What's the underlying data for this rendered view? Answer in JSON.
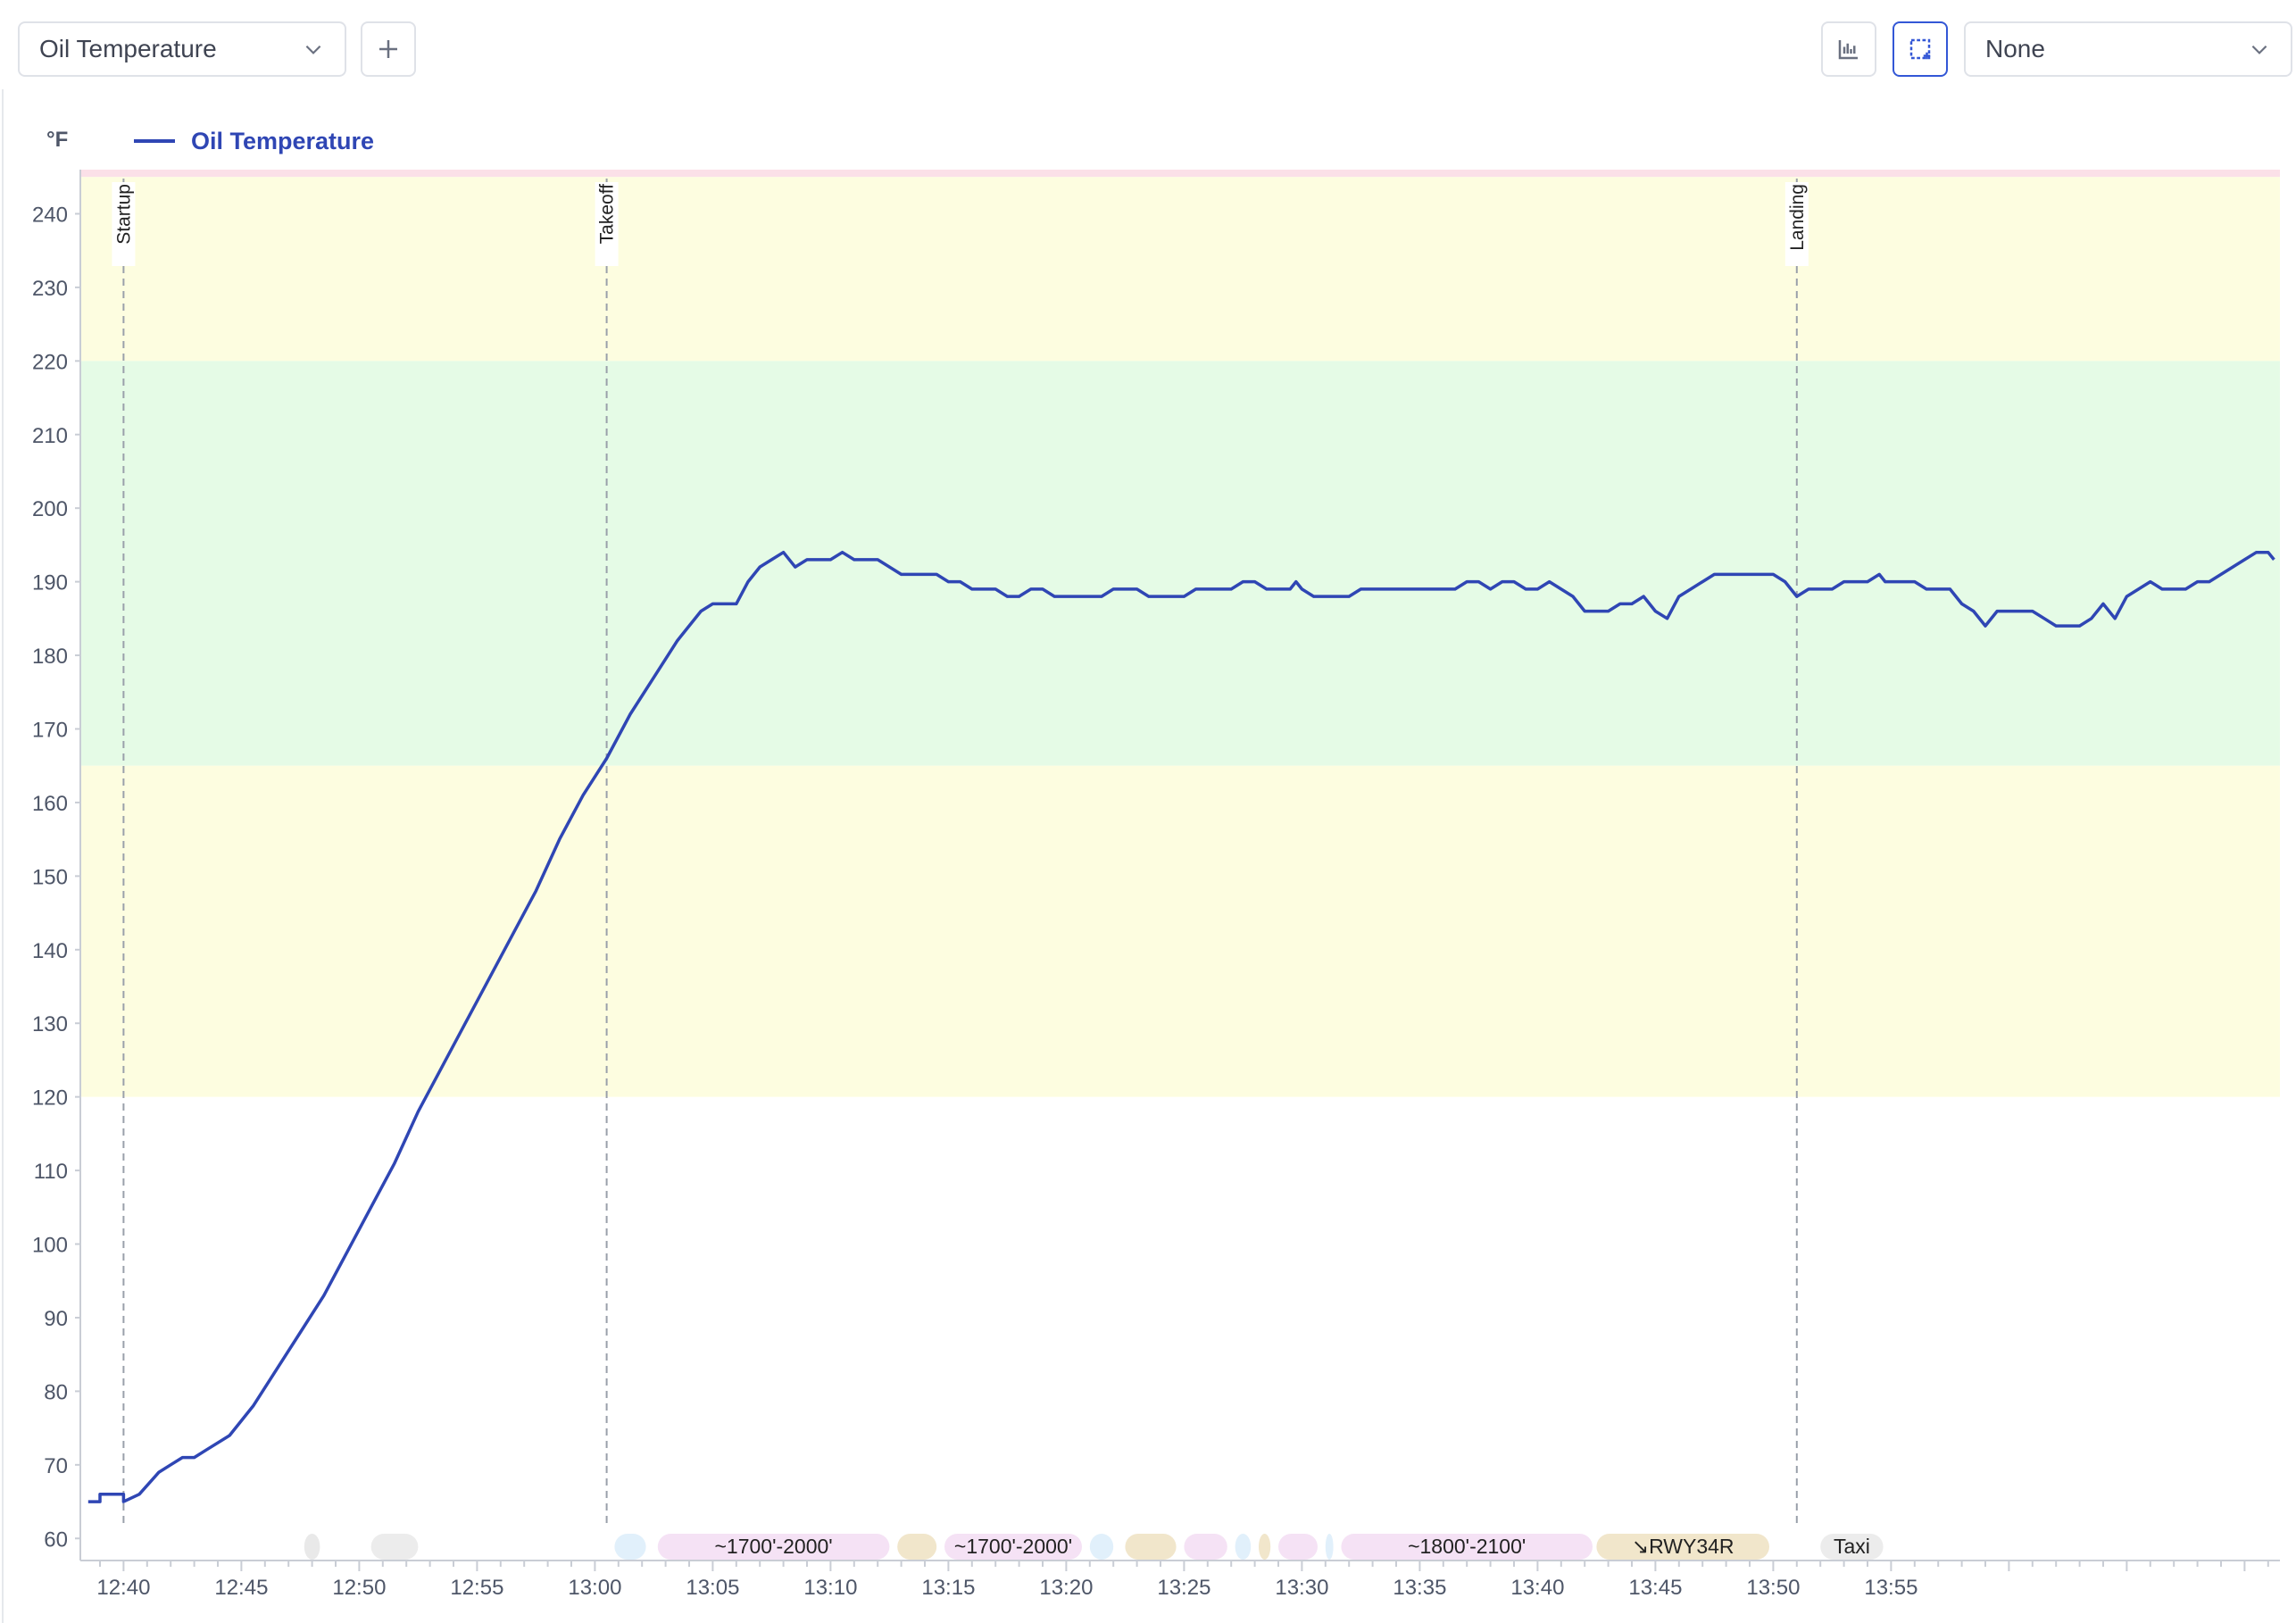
{
  "toolbar": {
    "metric_select_value": "Oil Temperature",
    "add_icon": "plus-icon",
    "bar_chart_icon": "bar-chart-icon",
    "selection_icon": "selection-box-icon",
    "compare_select_value": "None",
    "accent_color": "#3357d6"
  },
  "chart_data": {
    "type": "line",
    "unit": "°F",
    "legend": [
      "Oil Temperature"
    ],
    "series": [
      {
        "name": "Oil Temperature",
        "color": "#2f46b4",
        "points": [
          [
            "12:38:30",
            65
          ],
          [
            "12:39:00",
            65
          ],
          [
            "12:39:00",
            66
          ],
          [
            "12:40:00",
            66
          ],
          [
            "12:40:00",
            65
          ],
          [
            "12:40:40",
            66
          ],
          [
            "12:41:30",
            69
          ],
          [
            "12:42:00",
            70
          ],
          [
            "12:42:30",
            71
          ],
          [
            "12:43:00",
            71
          ],
          [
            "12:43:30",
            72
          ],
          [
            "12:44:30",
            74
          ],
          [
            "12:45:30",
            78
          ],
          [
            "12:46:30",
            83
          ],
          [
            "12:47:30",
            88
          ],
          [
            "12:48:30",
            93
          ],
          [
            "12:49:30",
            99
          ],
          [
            "12:50:30",
            105
          ],
          [
            "12:51:30",
            111
          ],
          [
            "12:52:30",
            118
          ],
          [
            "12:53:30",
            124
          ],
          [
            "12:54:30",
            130
          ],
          [
            "12:55:30",
            136
          ],
          [
            "12:56:30",
            142
          ],
          [
            "12:57:30",
            148
          ],
          [
            "12:58:30",
            155
          ],
          [
            "12:59:30",
            161
          ],
          [
            "13:00:30",
            166
          ],
          [
            "13:01:30",
            172
          ],
          [
            "13:02:30",
            177
          ],
          [
            "13:03:30",
            182
          ],
          [
            "13:04:30",
            186
          ],
          [
            "13:05:00",
            187
          ],
          [
            "13:06:00",
            187
          ],
          [
            "13:06:30",
            190
          ],
          [
            "13:07:00",
            192
          ],
          [
            "13:07:30",
            193
          ],
          [
            "13:08:00",
            194
          ],
          [
            "13:08:30",
            192
          ],
          [
            "13:09:00",
            193
          ],
          [
            "13:10:00",
            193
          ],
          [
            "13:10:30",
            194
          ],
          [
            "13:11:00",
            193
          ],
          [
            "13:12:00",
            193
          ],
          [
            "13:12:30",
            192
          ],
          [
            "13:13:00",
            191
          ],
          [
            "13:14:30",
            191
          ],
          [
            "13:15:00",
            190
          ],
          [
            "13:15:30",
            190
          ],
          [
            "13:16:00",
            189
          ],
          [
            "13:17:00",
            189
          ],
          [
            "13:17:30",
            188
          ],
          [
            "13:18:00",
            188
          ],
          [
            "13:18:30",
            189
          ],
          [
            "13:19:00",
            189
          ],
          [
            "13:19:30",
            188
          ],
          [
            "13:21:30",
            188
          ],
          [
            "13:22:00",
            189
          ],
          [
            "13:23:00",
            189
          ],
          [
            "13:23:30",
            188
          ],
          [
            "13:25:00",
            188
          ],
          [
            "13:25:30",
            189
          ],
          [
            "13:27:00",
            189
          ],
          [
            "13:27:30",
            190
          ],
          [
            "13:28:00",
            190
          ],
          [
            "13:28:30",
            189
          ],
          [
            "13:29:30",
            189
          ],
          [
            "13:29:45",
            190
          ],
          [
            "13:30:00",
            189
          ],
          [
            "13:30:30",
            188
          ],
          [
            "13:32:00",
            188
          ],
          [
            "13:32:30",
            189
          ],
          [
            "13:36:30",
            189
          ],
          [
            "13:37:00",
            190
          ],
          [
            "13:37:30",
            190
          ],
          [
            "13:38:00",
            189
          ],
          [
            "13:38:30",
            190
          ],
          [
            "13:39:00",
            190
          ],
          [
            "13:39:30",
            189
          ],
          [
            "13:40:00",
            189
          ],
          [
            "13:40:30",
            190
          ],
          [
            "13:41:00",
            189
          ],
          [
            "13:41:30",
            188
          ],
          [
            "13:42:00",
            186
          ],
          [
            "13:43:00",
            186
          ],
          [
            "13:43:30",
            187
          ],
          [
            "13:44:00",
            187
          ],
          [
            "13:44:30",
            188
          ],
          [
            "13:45:00",
            186
          ],
          [
            "13:45:30",
            185
          ],
          [
            "13:46:00",
            188
          ],
          [
            "13:46:30",
            189
          ],
          [
            "13:47:00",
            190
          ],
          [
            "13:47:30",
            191
          ],
          [
            "13:50:00",
            191
          ],
          [
            "13:50:30",
            190
          ],
          [
            "13:51:00",
            188
          ],
          [
            "13:51:30",
            189
          ],
          [
            "13:52:30",
            189
          ],
          [
            "13:53:00",
            190
          ],
          [
            "13:54:00",
            190
          ],
          [
            "13:54:30",
            191
          ],
          [
            "13:54:45",
            190
          ],
          [
            "13:55:00",
            190
          ],
          [
            "13:56:00",
            190
          ],
          [
            "13:56:30",
            189
          ],
          [
            "13:57:30",
            189
          ],
          [
            "13:58:00",
            187
          ],
          [
            "13:58:30",
            186
          ],
          [
            "13:59:00",
            184
          ],
          [
            "13:59:30",
            186
          ],
          [
            "14:00:00",
            186
          ],
          [
            "14:01:00",
            186
          ],
          [
            "14:01:30",
            185
          ],
          [
            "14:02:00",
            184
          ],
          [
            "14:03:00",
            184
          ],
          [
            "14:03:30",
            185
          ],
          [
            "14:04:00",
            187
          ],
          [
            "14:04:30",
            185
          ],
          [
            "14:05:00",
            188
          ],
          [
            "14:05:30",
            189
          ],
          [
            "14:06:00",
            190
          ],
          [
            "14:06:30",
            189
          ],
          [
            "14:07:30",
            189
          ],
          [
            "14:08:00",
            190
          ],
          [
            "14:08:30",
            190
          ],
          [
            "14:09:00",
            191
          ],
          [
            "14:09:30",
            192
          ],
          [
            "14:10:00",
            193
          ],
          [
            "14:10:30",
            194
          ],
          [
            "14:11:00",
            194
          ],
          [
            "14:11:15",
            193
          ]
        ]
      }
    ],
    "ylim": [
      57,
      246
    ],
    "yticks": [
      60,
      70,
      80,
      90,
      100,
      110,
      120,
      130,
      140,
      150,
      160,
      170,
      180,
      190,
      200,
      210,
      220,
      230,
      240
    ],
    "xlim": [
      "12:38:10",
      "14:11:30"
    ],
    "xticks": [
      "12:40",
      "12:45",
      "12:50",
      "12:55",
      "13:00",
      "13:05",
      "13:10",
      "13:15",
      "13:20",
      "13:25",
      "13:30",
      "13:35",
      "13:40",
      "13:45",
      "13:50",
      "13:55"
    ],
    "grid": false,
    "legend_position": "top-left",
    "ranges": [
      {
        "from": 245,
        "to": 246,
        "color": "#fbe0e8"
      },
      {
        "from": 220,
        "to": 245,
        "color": "#fdfde0"
      },
      {
        "from": 165,
        "to": 220,
        "color": "#e5fbe6"
      },
      {
        "from": 120,
        "to": 165,
        "color": "#fdfde0"
      }
    ],
    "events": [
      {
        "label": "Startup",
        "time": "12:40:00"
      },
      {
        "label": "Takeoff",
        "time": "13:00:30"
      },
      {
        "label": "Landing",
        "time": "13:51:00"
      }
    ],
    "segments": [
      {
        "from": "12:47:40",
        "to": "12:48:20",
        "label": "",
        "color": "#e9e9e9"
      },
      {
        "from": "12:50:30",
        "to": "12:52:30",
        "label": "",
        "color": "#ececec"
      },
      {
        "from": "13:00:50",
        "to": "13:02:10",
        "label": "",
        "color": "#e1f0fb"
      },
      {
        "from": "13:02:40",
        "to": "13:12:30",
        "label": "~1700'-2000'",
        "color": "#f5e2f5"
      },
      {
        "from": "13:12:50",
        "to": "13:14:30",
        "label": "",
        "color": "#f1e6cb"
      },
      {
        "from": "13:14:50",
        "to": "13:20:40",
        "label": "~1700'-2000'",
        "color": "#f5e2f5"
      },
      {
        "from": "13:21:00",
        "to": "13:22:00",
        "label": "",
        "color": "#e1f0fb"
      },
      {
        "from": "13:22:30",
        "to": "13:24:40",
        "label": "",
        "color": "#f1e6cb"
      },
      {
        "from": "13:25:00",
        "to": "13:26:50",
        "label": "",
        "color": "#f5e2f5"
      },
      {
        "from": "13:27:10",
        "to": "13:27:50",
        "label": "",
        "color": "#e1f0fb"
      },
      {
        "from": "13:28:10",
        "to": "13:28:40",
        "label": "",
        "color": "#f1e6cb"
      },
      {
        "from": "13:29:00",
        "to": "13:30:40",
        "label": "",
        "color": "#f5e2f5"
      },
      {
        "from": "13:31:00",
        "to": "13:31:20",
        "label": "",
        "color": "#e1f0fb"
      },
      {
        "from": "13:31:40",
        "to": "13:42:20",
        "label": "~1800'-2100'",
        "color": "#f5e2f5"
      },
      {
        "from": "13:42:30",
        "to": "13:49:50",
        "label": "↘RWY34R",
        "color": "#f1e6cb"
      },
      {
        "from": "13:52:00",
        "to": "13:54:40",
        "label": "Taxi",
        "color": "#ececec"
      }
    ]
  }
}
